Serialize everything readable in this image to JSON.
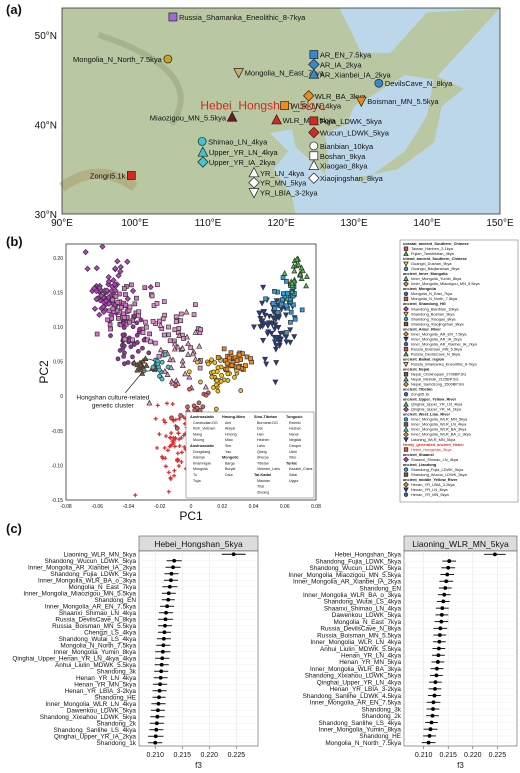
{
  "panel_labels": [
    "(a)",
    "(b)",
    "(c)"
  ],
  "colors": {
    "hebei_label": "#d9281d",
    "map_land": "#b9c7a2",
    "map_sea": "#bcd7ea",
    "f3_header": "#dcdcdc",
    "point": "#000000"
  },
  "chart_data": [
    {
      "type": "map",
      "panel": "(a)",
      "lat_ticks": [
        "50°N",
        "40°N",
        "30°N"
      ],
      "lon_ticks": [
        "90°E",
        "100°E",
        "110°E",
        "120°E",
        "130°E",
        "140°E",
        "150°E"
      ],
      "x": [
        90,
        150
      ],
      "y": [
        30,
        53
      ],
      "sites": [
        {
          "label": "Russia_Shamanka_Eneolithic_8-7kya",
          "lon": 105.2,
          "lat": 52.0,
          "symbol": "square",
          "color": "#9b6dd6"
        },
        {
          "label": "Mongolia_N_North_7.5kya",
          "lon": 104.5,
          "lat": 47.3,
          "symbol": "circle",
          "color": "#c9a227"
        },
        {
          "label": "Mongolia_N_East_7kya",
          "lon": 114.2,
          "lat": 45.8,
          "symbol": "triangle-down",
          "color": "#c8b36a"
        },
        {
          "label": "AR_EN_7.5kya",
          "lon": 124.5,
          "lat": 47.8,
          "symbol": "square",
          "color": "#2e8bd4"
        },
        {
          "label": "AR_IA_2kya",
          "lon": 124.5,
          "lat": 46.7,
          "symbol": "diamond",
          "color": "#2e8bd4"
        },
        {
          "label": "AR_Xianbei_IA_2kya",
          "lon": 124.5,
          "lat": 45.6,
          "symbol": "triangle",
          "color": "#2e8bd4"
        },
        {
          "label": "DevilsCave_N_8kya",
          "lon": 133.4,
          "lat": 44.6,
          "symbol": "circle",
          "color": "#2e8bd4"
        },
        {
          "label": "Hebei_Hongshan_5kya",
          "lon": 117.5,
          "lat": 42.0,
          "symbol": "none",
          "color": "#d9281d"
        },
        {
          "label": "WLR_LN_4kya",
          "lon": 120.5,
          "lat": 42.1,
          "symbol": "square",
          "color": "#f28a1b"
        },
        {
          "label": "WLR_BA_3kya",
          "lon": 123.8,
          "lat": 43.2,
          "symbol": "diamond",
          "color": "#f28a1b"
        },
        {
          "label": "Boisman_MN_5.5kya",
          "lon": 131.0,
          "lat": 42.6,
          "symbol": "triangle-down",
          "color": "#f28a1b"
        },
        {
          "label": "Miaozigou_MN_5.5kya",
          "lon": 113.3,
          "lat": 40.8,
          "symbol": "triangle",
          "color": "#6a1e1e"
        },
        {
          "label": "WLR_MN_5kya",
          "lon": 119.4,
          "lat": 40.5,
          "symbol": "triangle",
          "color": "#d9281d"
        },
        {
          "label": "Fujia_LDWK_5kya",
          "lon": 124.5,
          "lat": 40.4,
          "symbol": "square",
          "color": "#d9281d"
        },
        {
          "label": "Wucun_LDWK_5kya",
          "lon": 124.5,
          "lat": 39.1,
          "symbol": "diamond",
          "color": "#d9281d"
        },
        {
          "label": "Shimao_LN_4kya",
          "lon": 109.2,
          "lat": 38.1,
          "symbol": "circle",
          "color": "#3fc6cf"
        },
        {
          "label": "Upper_YR_LN_4kya",
          "lon": 109.3,
          "lat": 36.9,
          "symbol": "triangle",
          "color": "#3fc6cf"
        },
        {
          "label": "Upper_YR_IA_2kya",
          "lon": 109.3,
          "lat": 35.8,
          "symbol": "diamond",
          "color": "#3fc6cf"
        },
        {
          "label": "Zongri5.1k",
          "lon": 99.5,
          "lat": 34.3,
          "symbol": "square",
          "color": "#d9281d"
        },
        {
          "label": "Bianbian_10kya",
          "lon": 124.5,
          "lat": 37.6,
          "symbol": "circle",
          "color": "#ffffff"
        },
        {
          "label": "Boshan_9kya",
          "lon": 124.5,
          "lat": 36.5,
          "symbol": "square",
          "color": "#ffffff"
        },
        {
          "label": "Xiaogao_8kya",
          "lon": 124.5,
          "lat": 35.4,
          "symbol": "triangle",
          "color": "#ffffff"
        },
        {
          "label": "Xiaojingshan_8kya",
          "lon": 124.5,
          "lat": 34.0,
          "symbol": "diamond",
          "color": "#ffffff"
        },
        {
          "label": "YR_LN_4kya",
          "lon": 116.3,
          "lat": 34.6,
          "symbol": "triangle",
          "color": "#ffffff"
        },
        {
          "label": "YR_MN_5kya",
          "lon": 116.3,
          "lat": 33.5,
          "symbol": "diamond",
          "color": "#ffffff"
        },
        {
          "label": "YR_LBIA_3-2kya",
          "lon": 116.3,
          "lat": 32.4,
          "symbol": "triangle-down",
          "color": "#ffffff"
        }
      ]
    },
    {
      "type": "scatter",
      "panel": "(b)",
      "xlabel": "PC1",
      "ylabel": "PC2",
      "xlim": [
        -0.08,
        0.08
      ],
      "ylim": [
        -0.15,
        0.22
      ],
      "x_ticks": [
        "-0.08",
        "-0.06",
        "-0.04",
        "-0.02",
        "0",
        "0.02",
        "0.04",
        "0.06",
        "0.08"
      ],
      "y_ticks": [
        "0.20",
        "0.15",
        "0.10",
        "0.05",
        "0",
        "-0.05",
        "-0.10",
        "-0.15"
      ],
      "annotation": "Hongshan culture-related\ngenetic cluster",
      "clusters": [
        {
          "color": "#c13acb",
          "cx": -0.053,
          "cy": 0.15,
          "sx": 0.007,
          "sy": 0.02,
          "n": 70,
          "symbol": "diamond"
        },
        {
          "color": "#d770c9",
          "cx": -0.045,
          "cy": 0.12,
          "sx": 0.008,
          "sy": 0.02,
          "n": 50,
          "symbol": "square"
        },
        {
          "color": "#9b2fa6",
          "cx": -0.038,
          "cy": 0.08,
          "sx": 0.006,
          "sy": 0.02,
          "n": 40,
          "symbol": "circle"
        },
        {
          "color": "#e88bd4",
          "cx": -0.015,
          "cy": 0.1,
          "sx": 0.012,
          "sy": 0.025,
          "n": 50,
          "symbol": "square"
        },
        {
          "color": "#f29ac8",
          "cx": -0.005,
          "cy": 0.06,
          "sx": 0.008,
          "sy": 0.02,
          "n": 35,
          "symbol": "triangle"
        },
        {
          "color": "#dd2b2b",
          "cx": -0.01,
          "cy": -0.07,
          "sx": 0.006,
          "sy": 0.03,
          "n": 70,
          "symbol": "plus"
        },
        {
          "color": "#e05b5b",
          "cx": 0.005,
          "cy": -0.03,
          "sx": 0.008,
          "sy": 0.02,
          "n": 35,
          "symbol": "circle"
        },
        {
          "color": "#f2c21b",
          "cx": 0.018,
          "cy": 0.03,
          "sx": 0.008,
          "sy": 0.012,
          "n": 40,
          "symbol": "circle"
        },
        {
          "color": "#f08a1b",
          "cx": 0.028,
          "cy": 0.05,
          "sx": 0.006,
          "sy": 0.012,
          "n": 30,
          "symbol": "square"
        },
        {
          "color": "#1f3f99",
          "cx": 0.054,
          "cy": 0.1,
          "sx": 0.006,
          "sy": 0.025,
          "n": 70,
          "symbol": "triangle-down"
        },
        {
          "color": "#2aa0e0",
          "cx": 0.06,
          "cy": 0.14,
          "sx": 0.005,
          "sy": 0.02,
          "n": 40,
          "symbol": "square"
        },
        {
          "color": "#46c23b",
          "cx": 0.068,
          "cy": 0.18,
          "sx": 0.005,
          "sy": 0.015,
          "n": 25,
          "symbol": "triangle"
        },
        {
          "color": "#8b5a2b",
          "cx": -0.03,
          "cy": 0.045,
          "sx": 0.003,
          "sy": 0.006,
          "n": 15,
          "symbol": "triangle"
        },
        {
          "color": "#3fc6cf",
          "cx": -0.02,
          "cy": 0.04,
          "sx": 0.004,
          "sy": 0.01,
          "n": 15,
          "symbol": "circle"
        }
      ],
      "legend_1": [
        "coastal_ancient_Southern_Chinese",
        "Taiwan_Hanben_2-1kya",
        "Fujian_Tanshishan_4kya",
        "inland_ancient_Southern_Chinese",
        "Guangxi_Dushan_9kya",
        "Guangxi_Baojianshan_9kya",
        "ancient_Inner_Mongolia",
        "Inner_Mongolia_Yumin_8kya",
        "Inner_Mongolia_Miaozigou_MN_5.5kya",
        "ancient_Mongolia",
        "Mongolia_N_East_7kya",
        "Mongolia_N_North_7.5kya",
        "ancient_Shandong_HG",
        "Shandong_Bianbian_10kya",
        "Shandong_Boshan_9kya",
        "Shandong_Xiaogao_8kya",
        "Shandong_Xiaojingshan_8kya",
        "ancient_Amur_River",
        "Inner_Mongolia_AR_EN_7.5kya",
        "Inner_Mongolia_AR_IA_2kya",
        "Inner_Mongolia_AR_Xianbei_IA_2kya",
        "Russia_Boisman_MN_5.5kya",
        "Russia_DevilsCave_N_8kya",
        "ancient_Baikal_region",
        "Russia_Shamanka_Eneolithic_8-7kya",
        "ancient_Nepal",
        "Nepal_Chokhopani_2700BP.SG",
        "Nepal_Mebrak_2125BP.SG",
        "Nepal_Samdzong_1500BP.SG",
        "ancient_Tibetan",
        "Zongri5.1k",
        "ancient_Upper_Yellow_River",
        "Qinghai_Upper_YR_LN_4kya",
        "Qinghai_Upper_YR_IA_2kya",
        "ancient_West_Liao_River",
        "Inner_Mongolia_WLR_MN_5kya",
        "Inner_Mongolia_WLR_LN_4kya",
        "Inner_Mongolia_WLR_BA_3kya",
        "Inner_Mongolia_WLR_BA_o_3kya",
        "Liaoning_WLR_MN_5kya",
        "Newly_generated_ancient_Hebei",
        "Hebei_Hongshan_5kya",
        "ancient_Shaanxi",
        "Shaanxi_Shimao_LN_4kya",
        "ancient_Liaodong",
        "Shandong_Fujia_LDWK_5kya",
        "Shandong_Wucun_LDWK_5kya",
        "ancient_middle_Yellow_River",
        "Henan_YR_LBIA_3-2kya",
        "Henan_YR_LN_4kya",
        "Henan_YR_MN_5kya"
      ],
      "legend_2": {
        "Austroasiatic": [
          "Cambodian.DG",
          "Kinh_Vietnam",
          "Mang",
          "Muong"
        ],
        "Austroasiatic_2": [
          "Dongxiang",
          "Kalmyk",
          "Khamnigan",
          "Mongolia",
          "Tu",
          "Tujia"
        ],
        "Hmong-Mien": [
          "Ami",
          "Atayal",
          "Hmong",
          "Miao",
          "She",
          "Yao"
        ],
        "Mongolic": [
          "Barga",
          "Buryat",
          "Daur"
        ],
        "Sino-Tibetan": [
          "Burmese.DG",
          "Dai",
          "Han",
          "Hezhen",
          "Lahu",
          "Qiang",
          "Sherpa",
          "Tibetan",
          "Vietnam_Lahu"
        ],
        "Tai-Kadai": [
          "Maonan",
          "Thai",
          "Zhuang"
        ],
        "Tungusic": [
          "Ewenki",
          "Hezhen",
          "Nanai",
          "Negidal",
          "Oroqen",
          "Ulchi",
          "Xibo"
        ],
        "Turkic": [
          "Kazakh_China",
          "Salar",
          "Uygur"
        ]
      }
    },
    {
      "type": "dot-errorbar",
      "panel": "(c)",
      "title": "Hebei_Hongshan_5kya",
      "xlabel": "f3",
      "xlim": [
        0.207,
        0.229
      ],
      "x_ticks": [
        "0.210",
        "0.215",
        "0.220",
        "0.225"
      ],
      "categories": [
        "Liaoning_WLR_MN_5kya",
        "Shandong_Wucun_LDWK_5kya",
        "Inner_Mongolia_AR_Xianbei_IA_2kya",
        "Shandong_Fujia_LDWK_5kya",
        "Inner_Mongolia_WLR_BA_o_3kya",
        "Mongolia_N_East_7kya",
        "Inner_Mongolia_Miaozigou_MN_5.5kya",
        "Shandong_EN",
        "Inner_Mongolia_AR_EN_7.5kya",
        "Shaanxi_Shimao_LN_4kya",
        "Russia_DevilsCave_N_8kya",
        "Russia_Boisman_MN_5.5kya",
        "Chengzi_LS_4kya",
        "Shandong_Wutai_LS_4kya",
        "Mongolia_N_North_7.5kya",
        "Inner_Mongolia_Yumin_8kya",
        "Qinghai_Upper_Henan_YR_LN_4kya_4kya",
        "Anhui_Liulin_MDWK_5.5kya",
        "Shandong_3k",
        "Henan_YR_LN_4kya",
        "Henan_YR_MN_5kya",
        "Henan_YR_LBIA_3-2kya",
        "Shandong_HE",
        "Inner_Mongolia_WLR_LN_4kya",
        "Dawenkou_LDWK_5kya",
        "Shandong_Xixiahou_LDWK_5kya",
        "Shandong_2k",
        "Shandong_Sanlihe_LS_4kya",
        "Qinghai_Upper_YR_IA_2kya",
        "Shandong_1k"
      ],
      "values": [
        0.2245,
        0.2135,
        0.2133,
        0.213,
        0.2129,
        0.2127,
        0.2125,
        0.2124,
        0.2122,
        0.212,
        0.2119,
        0.2118,
        0.2117,
        0.2116,
        0.2115,
        0.2114,
        0.2113,
        0.2112,
        0.2111,
        0.211,
        0.2109,
        0.2108,
        0.2107,
        0.2106,
        0.2105,
        0.2104,
        0.2103,
        0.2102,
        0.2101,
        0.21
      ],
      "errors": [
        0.0022,
        0.0014,
        0.0014,
        0.0013,
        0.0013,
        0.0014,
        0.0013,
        0.0012,
        0.0013,
        0.0013,
        0.0014,
        0.0013,
        0.0012,
        0.0013,
        0.0013,
        0.0014,
        0.0013,
        0.0013,
        0.0013,
        0.0013,
        0.0013,
        0.0013,
        0.0012,
        0.0013,
        0.0013,
        0.0013,
        0.0013,
        0.0013,
        0.0014,
        0.0013
      ]
    },
    {
      "type": "dot-errorbar",
      "panel": "(c)",
      "title": "Liaoning_WLR_MN_5kya",
      "xlabel": "f3",
      "xlim": [
        0.206,
        0.229
      ],
      "x_ticks": [
        "0.210",
        "0.215",
        "0.220",
        "0.225"
      ],
      "categories": [
        "Hebei_Hongshan_5kya",
        "Shandong_Fujia_LDWK_5kya",
        "Shandong_Wucun_LDWK_5kya",
        "Inner_Mongolia_Miaozigou_MN_5.5kya",
        "Inner_Mongolia_AR_Xianbei_IA_2kya",
        "Shandong_EN",
        "Inner_Mongolia_WLR_BA_o_3kya",
        "Shandong_Wutai_LS_4kya",
        "Shaanxi_Shimao_LN_4kya",
        "Dawenkou_LDWK_5kya",
        "Mongolia_N_East_7kya",
        "Russia_DevilsCave_N_8kya",
        "Russia_Boisman_MN_5.5kya",
        "Inner_Mongolia_WLR_LN_4kya",
        "Anhui_Liulin_MDWK_5.5kya",
        "Henan_YR_LN_4kya",
        "Henan_YR_MN_5kya",
        "Inner_Mongolia_WLR_BA_3kya",
        "Shandong_Xixiahou_LDWK_5kya",
        "Qinghai_Upper_YR_LN_4kya",
        "Henan_YR_LBIA_3-2kya",
        "Shandong_Sanlihe_LDWK_4.5kya",
        "Inner_Mongolia_AR_EN_7.5kya",
        "Shandong_3k",
        "Shandong_2k",
        "Shandong_Sanlihe_LS_4kya",
        "Inner_Mongolia_Yumin_8kya",
        "Shandong_HE",
        "Mongolia_N_North_7.5kya"
      ],
      "values": [
        0.2245,
        0.2152,
        0.215,
        0.2148,
        0.2146,
        0.2144,
        0.2142,
        0.214,
        0.2138,
        0.2137,
        0.2136,
        0.2134,
        0.2133,
        0.2132,
        0.2131,
        0.213,
        0.2129,
        0.2127,
        0.2126,
        0.2124,
        0.2123,
        0.2122,
        0.212,
        0.2119,
        0.2118,
        0.2116,
        0.2114,
        0.2112,
        0.211
      ],
      "errors": [
        0.0022,
        0.0014,
        0.0014,
        0.0014,
        0.0014,
        0.0013,
        0.0013,
        0.0013,
        0.0013,
        0.0013,
        0.0014,
        0.0014,
        0.0013,
        0.0013,
        0.0013,
        0.0013,
        0.0013,
        0.0013,
        0.0013,
        0.0013,
        0.0013,
        0.0013,
        0.0014,
        0.0013,
        0.0013,
        0.0013,
        0.0014,
        0.0013,
        0.0014
      ]
    }
  ]
}
